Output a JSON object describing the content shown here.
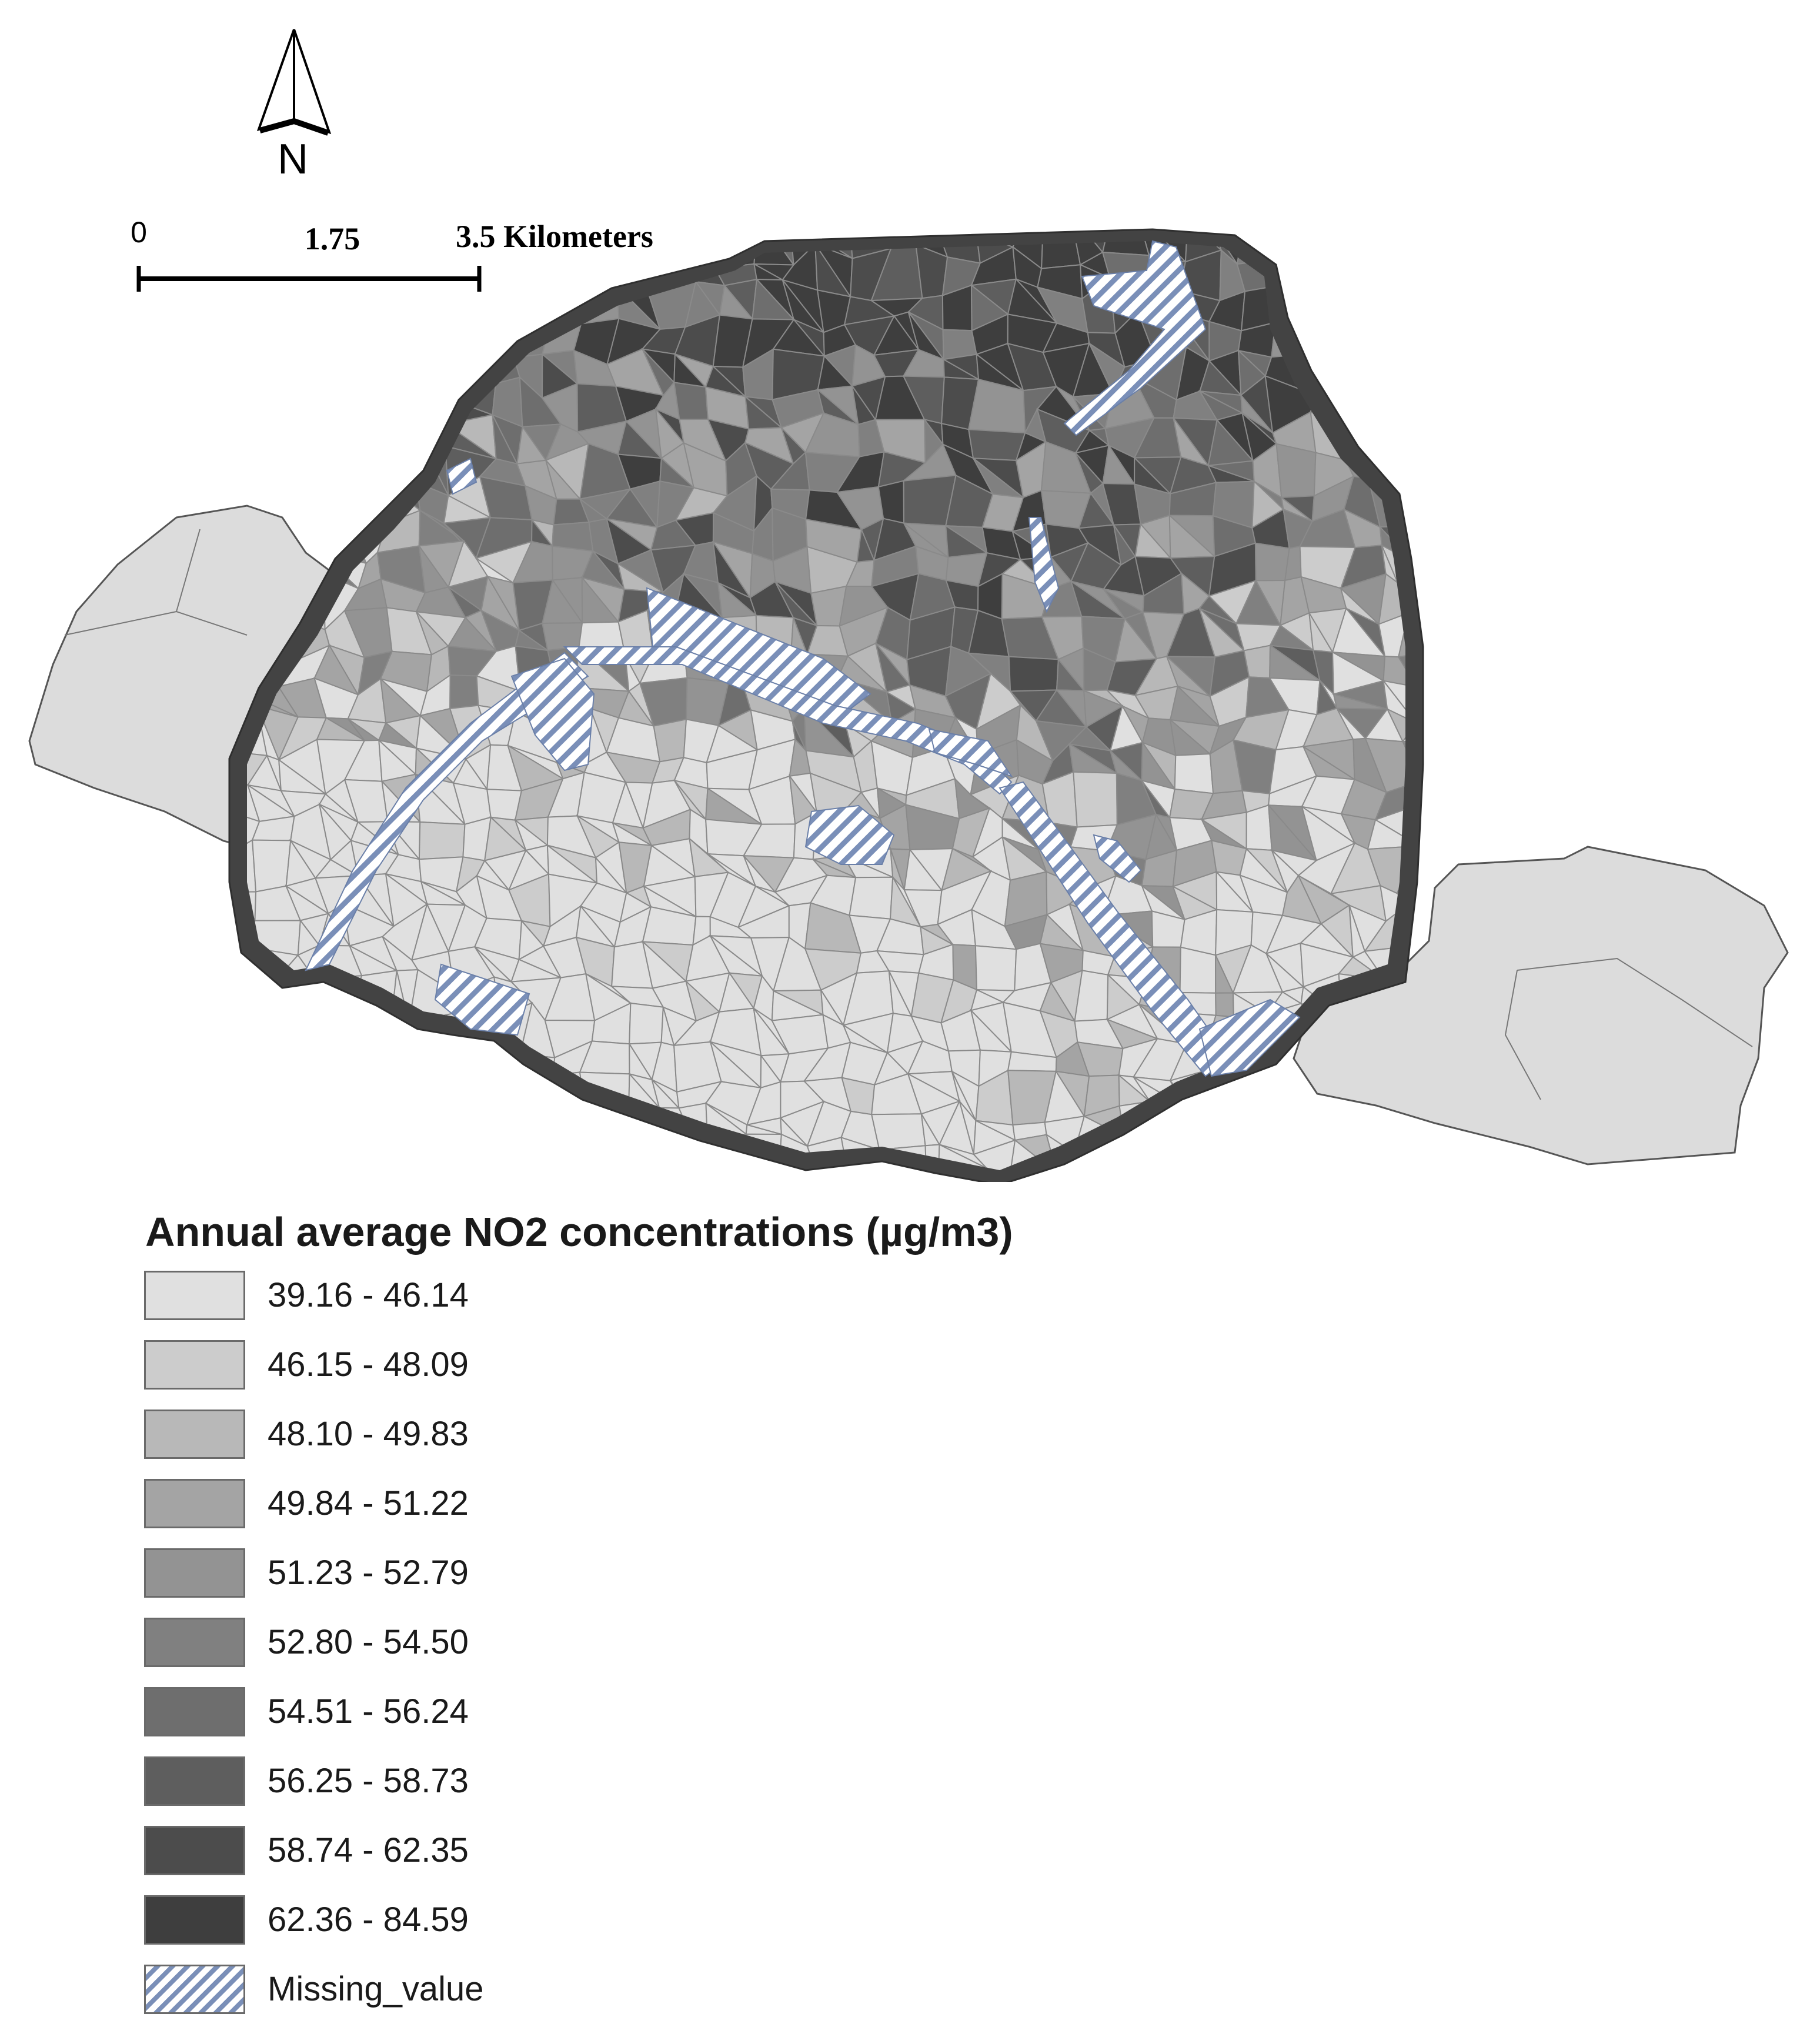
{
  "north_arrow": {
    "label": "N"
  },
  "scale_bar": {
    "label_start": "0",
    "label_mid": "1.75",
    "label_end": "3.5 Kilometers"
  },
  "legend": {
    "title": "Annual average NO2 concentrations (µg/m3)",
    "classes": [
      {
        "label": "39.16 - 46.14",
        "color": "#e0e0e0"
      },
      {
        "label": "46.15 - 48.09",
        "color": "#cccccc"
      },
      {
        "label": "48.10 - 49.83",
        "color": "#b8b8b8"
      },
      {
        "label": "49.84 - 51.22",
        "color": "#a4a4a4"
      },
      {
        "label": "51.23 - 52.79",
        "color": "#939393"
      },
      {
        "label": "52.80 - 54.50",
        "color": "#808080"
      },
      {
        "label": "54.51 - 56.24",
        "color": "#6e6e6e"
      },
      {
        "label": "56.25 - 58.73",
        "color": "#5e5e5e"
      },
      {
        "label": "58.74 - 62.35",
        "color": "#4c4c4c"
      },
      {
        "label": "62.36 - 84.59",
        "color": "#3e3e3e"
      }
    ],
    "missing": {
      "label": "Missing_value",
      "stripe_color": "#7a8fb8"
    }
  },
  "map": {
    "parks_color": "#dcdcdc",
    "ring_color": "#434343",
    "boundary_color": "#3a3a3a"
  }
}
